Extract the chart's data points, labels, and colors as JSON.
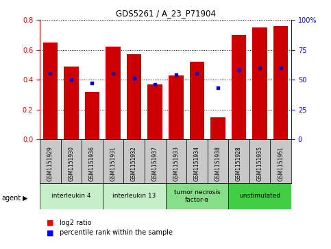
{
  "title": "GDS5261 / A_23_P71904",
  "samples": [
    "GSM1151929",
    "GSM1151930",
    "GSM1151936",
    "GSM1151931",
    "GSM1151932",
    "GSM1151937",
    "GSM1151933",
    "GSM1151934",
    "GSM1151938",
    "GSM1151928",
    "GSM1151935",
    "GSM1151951"
  ],
  "log2_ratio": [
    0.65,
    0.49,
    0.32,
    0.62,
    0.57,
    0.37,
    0.43,
    0.52,
    0.15,
    0.7,
    0.75,
    0.76
  ],
  "percentile_rank": [
    55,
    50,
    47,
    55,
    51,
    46,
    54,
    55,
    43,
    58,
    60,
    60
  ],
  "ylim_left": [
    0,
    0.8
  ],
  "ylim_right": [
    0,
    100
  ],
  "yticks_left": [
    0,
    0.2,
    0.4,
    0.6,
    0.8
  ],
  "yticks_right": [
    0,
    25,
    50,
    75,
    100
  ],
  "agents": [
    {
      "label": "interleukin 4",
      "start": 0,
      "end": 3,
      "color": "#c8f0c8"
    },
    {
      "label": "interleukin 13",
      "start": 3,
      "end": 6,
      "color": "#c8f0c8"
    },
    {
      "label": "tumor necrosis\nfactor-α",
      "start": 6,
      "end": 9,
      "color": "#88dd88"
    },
    {
      "label": "unstimulated",
      "start": 9,
      "end": 12,
      "color": "#44cc44"
    }
  ],
  "bar_color": "#cc0000",
  "scatter_color": "#0000cc",
  "sample_bg_color": "#c8c8c8",
  "legend_red_label": "log2 ratio",
  "legend_blue_label": "percentile rank within the sample"
}
